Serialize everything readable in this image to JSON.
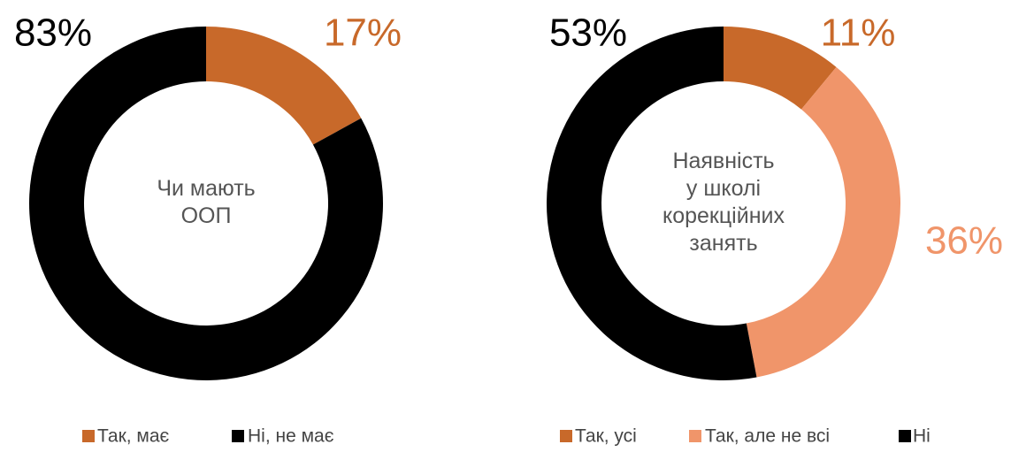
{
  "chart_data": [
    {
      "type": "donut",
      "title": [
        "Чи мають",
        "ООП"
      ],
      "categories": [
        "Так, має",
        "Ні, не має"
      ],
      "values": [
        17,
        83
      ],
      "value_labels": [
        "17%",
        "83%"
      ],
      "colors": [
        "#c8692a",
        "#000000"
      ]
    },
    {
      "type": "donut",
      "title": [
        "Наявність",
        "у школі",
        "корекційних",
        "занять"
      ],
      "categories": [
        "Так, усі",
        "Так, але не всі",
        "Ні"
      ],
      "values": [
        11,
        36,
        53
      ],
      "value_labels": [
        "11%",
        "36%",
        "53%"
      ],
      "colors": [
        "#c8692a",
        "#f0956a",
        "#000000"
      ]
    }
  ]
}
